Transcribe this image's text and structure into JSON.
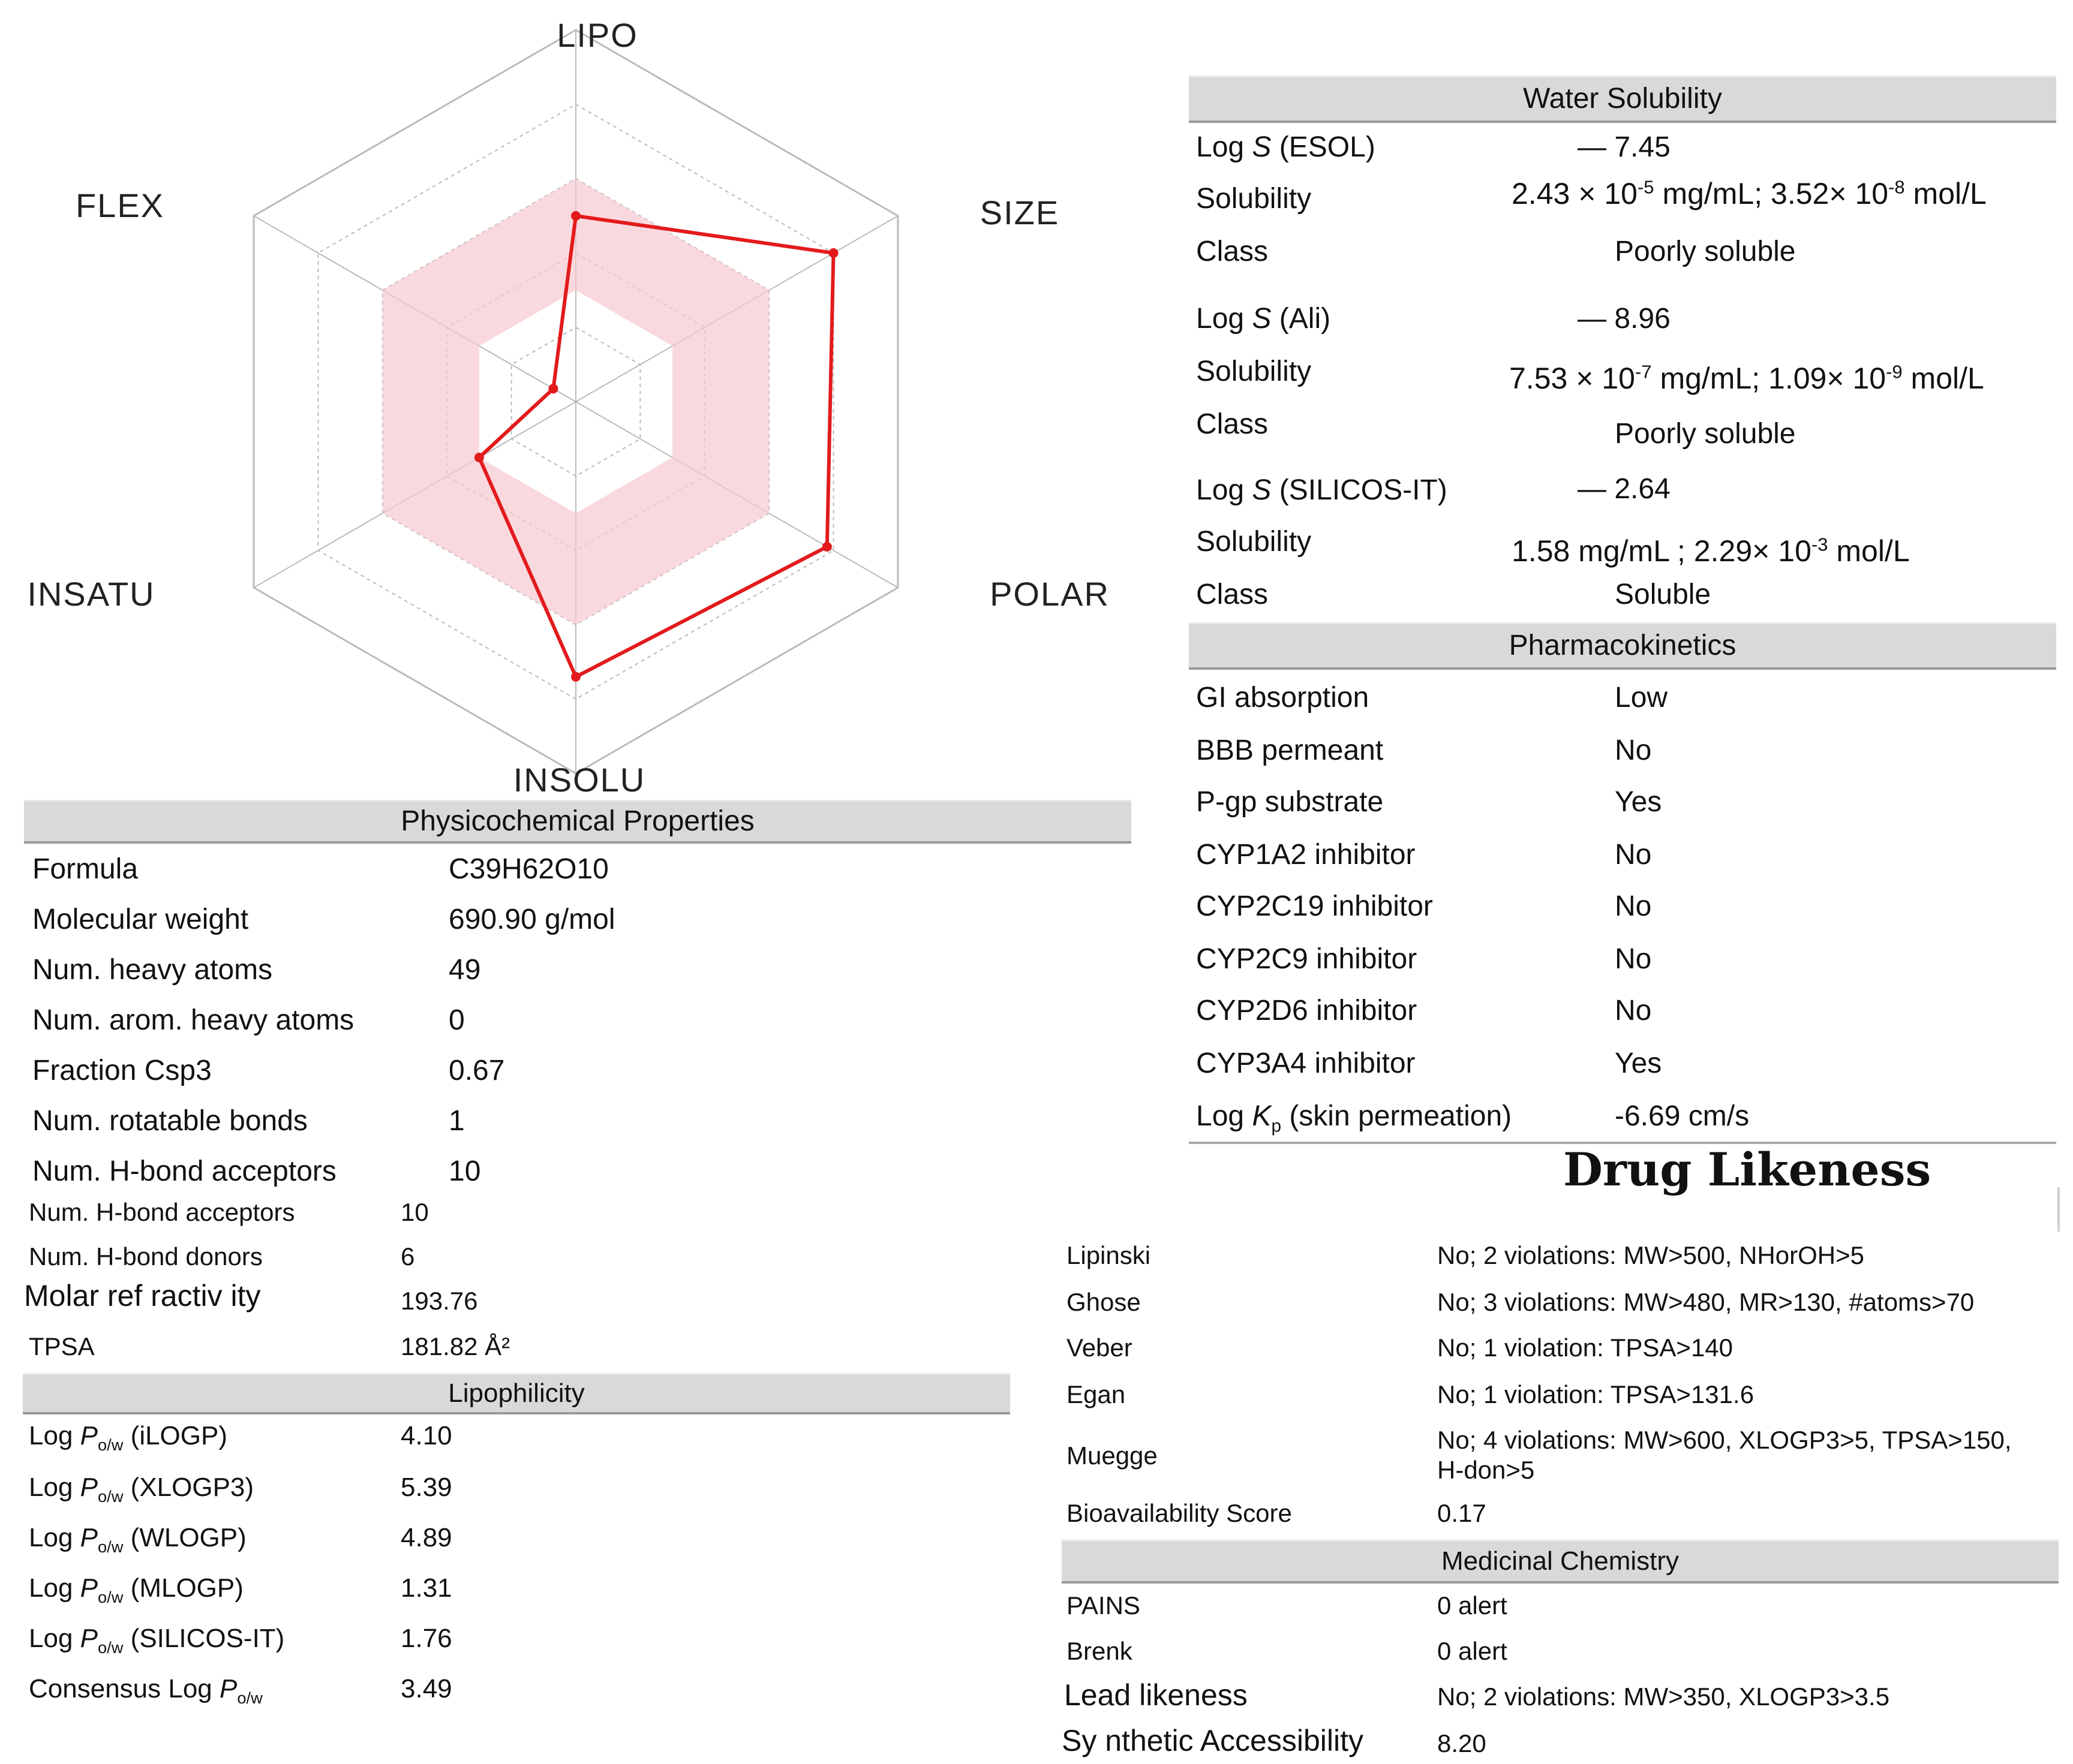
{
  "chart_data": {
    "type": "radar",
    "axes": [
      "LIPO",
      "SIZE",
      "POLAR",
      "INSOLU",
      "INSATU",
      "FLEX"
    ],
    "values": [
      0.5,
      0.8,
      0.78,
      0.74,
      0.3,
      0.07
    ],
    "optimal_band": [
      0.3,
      0.6
    ],
    "range": [
      0,
      1
    ],
    "colors": {
      "line": "#e31a1c",
      "band": "#f7c9cf",
      "grid": "#bbbbbb"
    }
  },
  "physchem": {
    "header": "Physicochemical Properties",
    "rows": [
      {
        "label": "Formula",
        "value": "C39H62O10"
      },
      {
        "label": "Molecular weight",
        "value": "690.90 g/mol"
      },
      {
        "label": "Num. heavy atoms",
        "value": "49"
      },
      {
        "label": "Num. arom. heavy atoms",
        "value": "0"
      },
      {
        "label": "Fraction Csp3",
        "value": "0.67"
      },
      {
        "label": "Num. rotatable bonds",
        "value": "1"
      },
      {
        "label": "Num. H-bond acceptors",
        "value": "10"
      }
    ],
    "rows_small": [
      {
        "label": "Num. H-bond acceptors",
        "value": "10"
      },
      {
        "label": "Num. H-bond donors",
        "value": "6"
      },
      {
        "label": "Molar  ref ractiv ity",
        "value": "193.76"
      },
      {
        "label": "TPSA",
        "value": "181.82 Å²"
      }
    ]
  },
  "lipophilicity": {
    "header": "Lipophilicity",
    "prefix": "Log ",
    "p": "P",
    "ow": "o/w",
    "consensus": "Consensus Log ",
    "rows": [
      {
        "method": " (iLOGP)",
        "value": "4.10"
      },
      {
        "method": " (XLOGP3)",
        "value": "5.39"
      },
      {
        "method": " (WLOGP)",
        "value": "4.89"
      },
      {
        "method": " (MLOGP)",
        "value": "1.31"
      },
      {
        "method": " (SILICOS-IT)",
        "value": "1.76"
      }
    ],
    "consensus_value": "3.49"
  },
  "water": {
    "header": "Water Solubility",
    "log": "Log ",
    "s": "S",
    "solubility_label": "Solubility",
    "class_label": "Class",
    "x": "×",
    "ten": "10",
    "minus": "—",
    "groups": [
      {
        "method": " (ESOL)",
        "logs": "7.45",
        "sol_a": "2.43",
        "exp_a": "-5",
        "unit_a": " mg/mL; 3.52",
        "exp_b": "-8",
        "unit_b": " mol/L",
        "cls": "Poorly soluble"
      },
      {
        "method": " (Ali)",
        "logs": "8.96",
        "sol_a": "7.53",
        "exp_a": "-7",
        "unit_a": " mg/mL; 1.09",
        "exp_b": "-9",
        "unit_b": " mol/L",
        "cls": "Poorly soluble"
      },
      {
        "method": " (SILICOS-IT)",
        "logs": "2.64",
        "sol_a": "1.58 mg/mL ; 2.29",
        "exp_b": "-3",
        "unit_b": " mol/L",
        "cls": "Soluble"
      }
    ]
  },
  "pk": {
    "header": "Pharmacokinetics",
    "rows": [
      {
        "label": "GI absorption",
        "value": "Low"
      },
      {
        "label": "BBB permeant",
        "value": "No"
      },
      {
        "label": "P-gp substrate",
        "value": "Yes"
      },
      {
        "label": "CYP1A2 inhibitor",
        "value": "No"
      },
      {
        "label": "CYP2C19 inhibitor",
        "value": "No"
      },
      {
        "label": "CYP2C9 inhibitor",
        "value": "No"
      },
      {
        "label": "CYP2D6 inhibitor",
        "value": "No"
      },
      {
        "label": "CYP3A4 inhibitor",
        "value": "Yes"
      }
    ],
    "kp_log": "Log ",
    "kp_k": "K",
    "kp_sub": "p",
    "kp_rest": " (skin permeation)",
    "kp_value": "-6.69 cm/s"
  },
  "drug": {
    "title": "Drug Likeness",
    "rows": [
      {
        "label": "Lipinski",
        "value": "No; 2 violations: MW>500, NHorOH>5"
      },
      {
        "label": "Ghose",
        "value": "No; 3 violations: MW>480, MR>130, #atoms>70"
      },
      {
        "label": "Veber",
        "value": "No; 1 violation: TPSA>140"
      },
      {
        "label": "Egan",
        "value": "No; 1 violation: TPSA>131.6"
      }
    ],
    "muegge_label": "Muegge",
    "muegge_line1": "No; 4 violations: MW>600, XLOGP3>5, TPSA>150,",
    "muegge_line2": "H-don>5",
    "bio_label": "Bioavailability Score",
    "bio_value": "0.17"
  },
  "medchem": {
    "header": "Medicinal Chemistry",
    "rows": [
      {
        "label": "PAINS",
        "value": "0 alert"
      },
      {
        "label": "Brenk",
        "value": "0 alert"
      }
    ],
    "lead_label": "Lead likeness",
    "lead_value": "No; 2 violations: MW>350, XLOGP3>3.5",
    "synth_label": "Sy nthetic Accessibility",
    "synth_value": "8.20"
  }
}
